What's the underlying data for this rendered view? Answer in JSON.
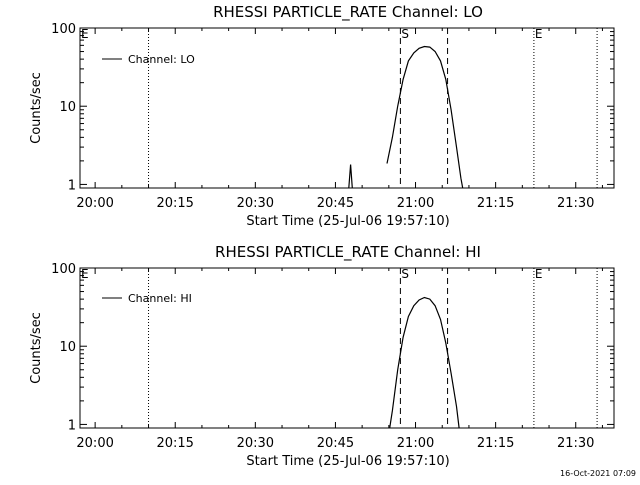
{
  "stamp": "16-Oct-2021 07:09",
  "chart_data": [
    {
      "type": "line",
      "title": "RHESSI PARTICLE_RATE Channel: LO",
      "xlabel": "Start Time (25-Jul-06 19:57:10)",
      "ylabel": "Counts/sec",
      "legend_label": "Channel: LO",
      "legend_position": "top-left",
      "y_scale": "log",
      "ylim": [
        0.9,
        100
      ],
      "xlim": [
        "19:57:10",
        "21:37:10"
      ],
      "x_ticks": [
        "20:00",
        "20:15",
        "20:30",
        "20:45",
        "21:00",
        "21:15",
        "21:30"
      ],
      "y_ticks": [
        "1",
        "10",
        "100"
      ],
      "markers": [
        {
          "time": "19:57:10",
          "label": "E",
          "style": "none"
        },
        {
          "time": "20:10:00",
          "label": "",
          "style": "dotted"
        },
        {
          "time": "20:57:10",
          "label": "S",
          "style": "dashed"
        },
        {
          "time": "21:06:00",
          "label": "",
          "style": "dashed"
        },
        {
          "time": "21:22:10",
          "label": "E",
          "style": "dotted"
        },
        {
          "time": "21:34:00",
          "label": "",
          "style": "dotted"
        }
      ],
      "series": [
        {
          "name": "Channel: LO",
          "segments": [
            [
              [
                "20:47:30",
                0.9
              ],
              [
                "20:47:50",
                1.8
              ],
              [
                "20:48:10",
                0.9
              ]
            ],
            [
              [
                "20:54:40",
                1.85
              ],
              [
                "20:55:40",
                4
              ],
              [
                "20:56:40",
                10
              ],
              [
                "20:57:40",
                22
              ],
              [
                "20:58:40",
                38
              ],
              [
                "20:59:40",
                48
              ],
              [
                "21:00:40",
                55
              ],
              [
                "21:01:40",
                58
              ],
              [
                "21:02:40",
                57
              ],
              [
                "21:03:40",
                50
              ],
              [
                "21:04:40",
                38
              ],
              [
                "21:05:40",
                22
              ],
              [
                "21:06:40",
                9
              ],
              [
                "21:07:40",
                3
              ],
              [
                "21:08:30",
                1.2
              ],
              [
                "21:08:50",
                0.9
              ]
            ]
          ]
        }
      ]
    },
    {
      "type": "line",
      "title": "RHESSI PARTICLE_RATE Channel: HI",
      "xlabel": "Start Time (25-Jul-06 19:57:10)",
      "ylabel": "Counts/sec",
      "legend_label": "Channel: HI",
      "legend_position": "top-left",
      "y_scale": "log",
      "ylim": [
        0.9,
        100
      ],
      "xlim": [
        "19:57:10",
        "21:37:10"
      ],
      "x_ticks": [
        "20:00",
        "20:15",
        "20:30",
        "20:45",
        "21:00",
        "21:15",
        "21:30"
      ],
      "y_ticks": [
        "1",
        "10",
        "100"
      ],
      "markers": [
        {
          "time": "19:57:10",
          "label": "E",
          "style": "none"
        },
        {
          "time": "20:10:00",
          "label": "",
          "style": "dotted"
        },
        {
          "time": "20:57:10",
          "label": "S",
          "style": "dashed"
        },
        {
          "time": "21:06:00",
          "label": "",
          "style": "dashed"
        },
        {
          "time": "21:22:10",
          "label": "E",
          "style": "dotted"
        },
        {
          "time": "21:34:00",
          "label": "",
          "style": "dotted"
        }
      ],
      "series": [
        {
          "name": "Channel: HI",
          "segments": [
            [
              [
                "20:55:10",
                0.9
              ],
              [
                "20:55:40",
                1.5
              ],
              [
                "20:56:40",
                5
              ],
              [
                "20:57:40",
                13
              ],
              [
                "20:58:40",
                24
              ],
              [
                "20:59:40",
                33
              ],
              [
                "21:00:40",
                39
              ],
              [
                "21:01:40",
                42
              ],
              [
                "21:02:40",
                40
              ],
              [
                "21:03:40",
                33
              ],
              [
                "21:04:40",
                22
              ],
              [
                "21:05:40",
                11
              ],
              [
                "21:06:40",
                4.5
              ],
              [
                "21:07:40",
                1.7
              ],
              [
                "21:08:10",
                0.9
              ]
            ]
          ]
        }
      ]
    }
  ]
}
